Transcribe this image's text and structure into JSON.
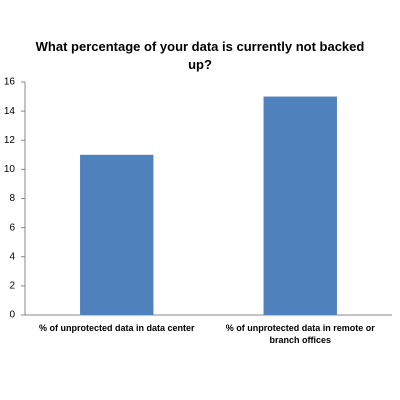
{
  "chart_data": {
    "type": "bar",
    "title": "What percentage of your data is currently not backed up?",
    "categories": [
      "% of unprotected data in data center",
      "% of unprotected data in remote or branch offices"
    ],
    "values": [
      11,
      15
    ],
    "color": "#4f81bd",
    "ylim": [
      0,
      16
    ],
    "yticks": [
      0,
      2,
      4,
      6,
      8,
      10,
      12,
      14,
      16
    ],
    "grid": false
  }
}
